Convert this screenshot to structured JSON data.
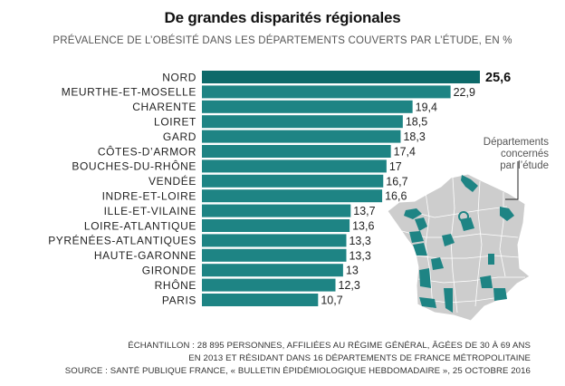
{
  "title": "De grandes disparités régionales",
  "subtitle": "PRÉVALENCE DE L’OBÉSITÉ DANS LES DÉPARTEMENTS COUVERTS PAR L’ÉTUDE, EN %",
  "colors": {
    "bar": "#1e8484",
    "bar_highlight": "#0d6a6a",
    "map_base": "#cdcdcd",
    "map_highlight": "#1e8484"
  },
  "chart_data": {
    "type": "bar",
    "orientation": "horizontal",
    "title": "De grandes disparités régionales",
    "subtitle": "PRÉVALENCE DE L’OBÉSITÉ DANS LES DÉPARTEMENTS COUVERTS PAR L’ÉTUDE, EN %",
    "categories": [
      "NORD",
      "MEURTHE-ET-MOSELLE",
      "CHARENTE",
      "LOIRET",
      "GARD",
      "CÔTES-D’ARMOR",
      "BOUCHES-DU-RHÔNE",
      "VENDÉE",
      "INDRE-ET-LOIRE",
      "ILLE-ET-VILAINE",
      "LOIRE-ATLANTIQUE",
      "PYRÉNÉES-ATLANTIQUES",
      "HAUTE-GARONNE",
      "GIRONDE",
      "RHÔNE",
      "PARIS"
    ],
    "values": [
      25.6,
      22.9,
      19.4,
      18.5,
      18.3,
      17.4,
      17,
      16.7,
      16.6,
      13.7,
      13.6,
      13.3,
      13.3,
      13,
      12.3,
      10.7
    ],
    "value_labels": [
      "25,6",
      "22,9",
      "19,4",
      "18,5",
      "18,3",
      "17,4",
      "17",
      "16,7",
      "16,6",
      "13,7",
      "13,6",
      "13,3",
      "13,3",
      "13",
      "12,3",
      "10,7"
    ],
    "xlim": [
      0,
      25.6
    ],
    "grid": false,
    "highlight_index": 0
  },
  "map": {
    "legend_lines": [
      "Départements",
      "concernés",
      "par l’étude"
    ]
  },
  "footer": {
    "lines": [
      "ÉCHANTILLON : 28 895 PERSONNES, AFFILIÉES AU RÉGIME GÉNÉRAL, ÂGÉES DE 30 À 69 ANS",
      "EN 2013 ET RÉSIDANT DANS 16 DÉPARTEMENTS DE FRANCE MÉTROPOLITAINE",
      "SOURCE :  SANTÉ PUBLIQUE FRANCE, « BULLETIN ÉPIDÉMIOLOGIQUE HEBDOMADAIRE », 25 OCTOBRE 2016"
    ]
  }
}
